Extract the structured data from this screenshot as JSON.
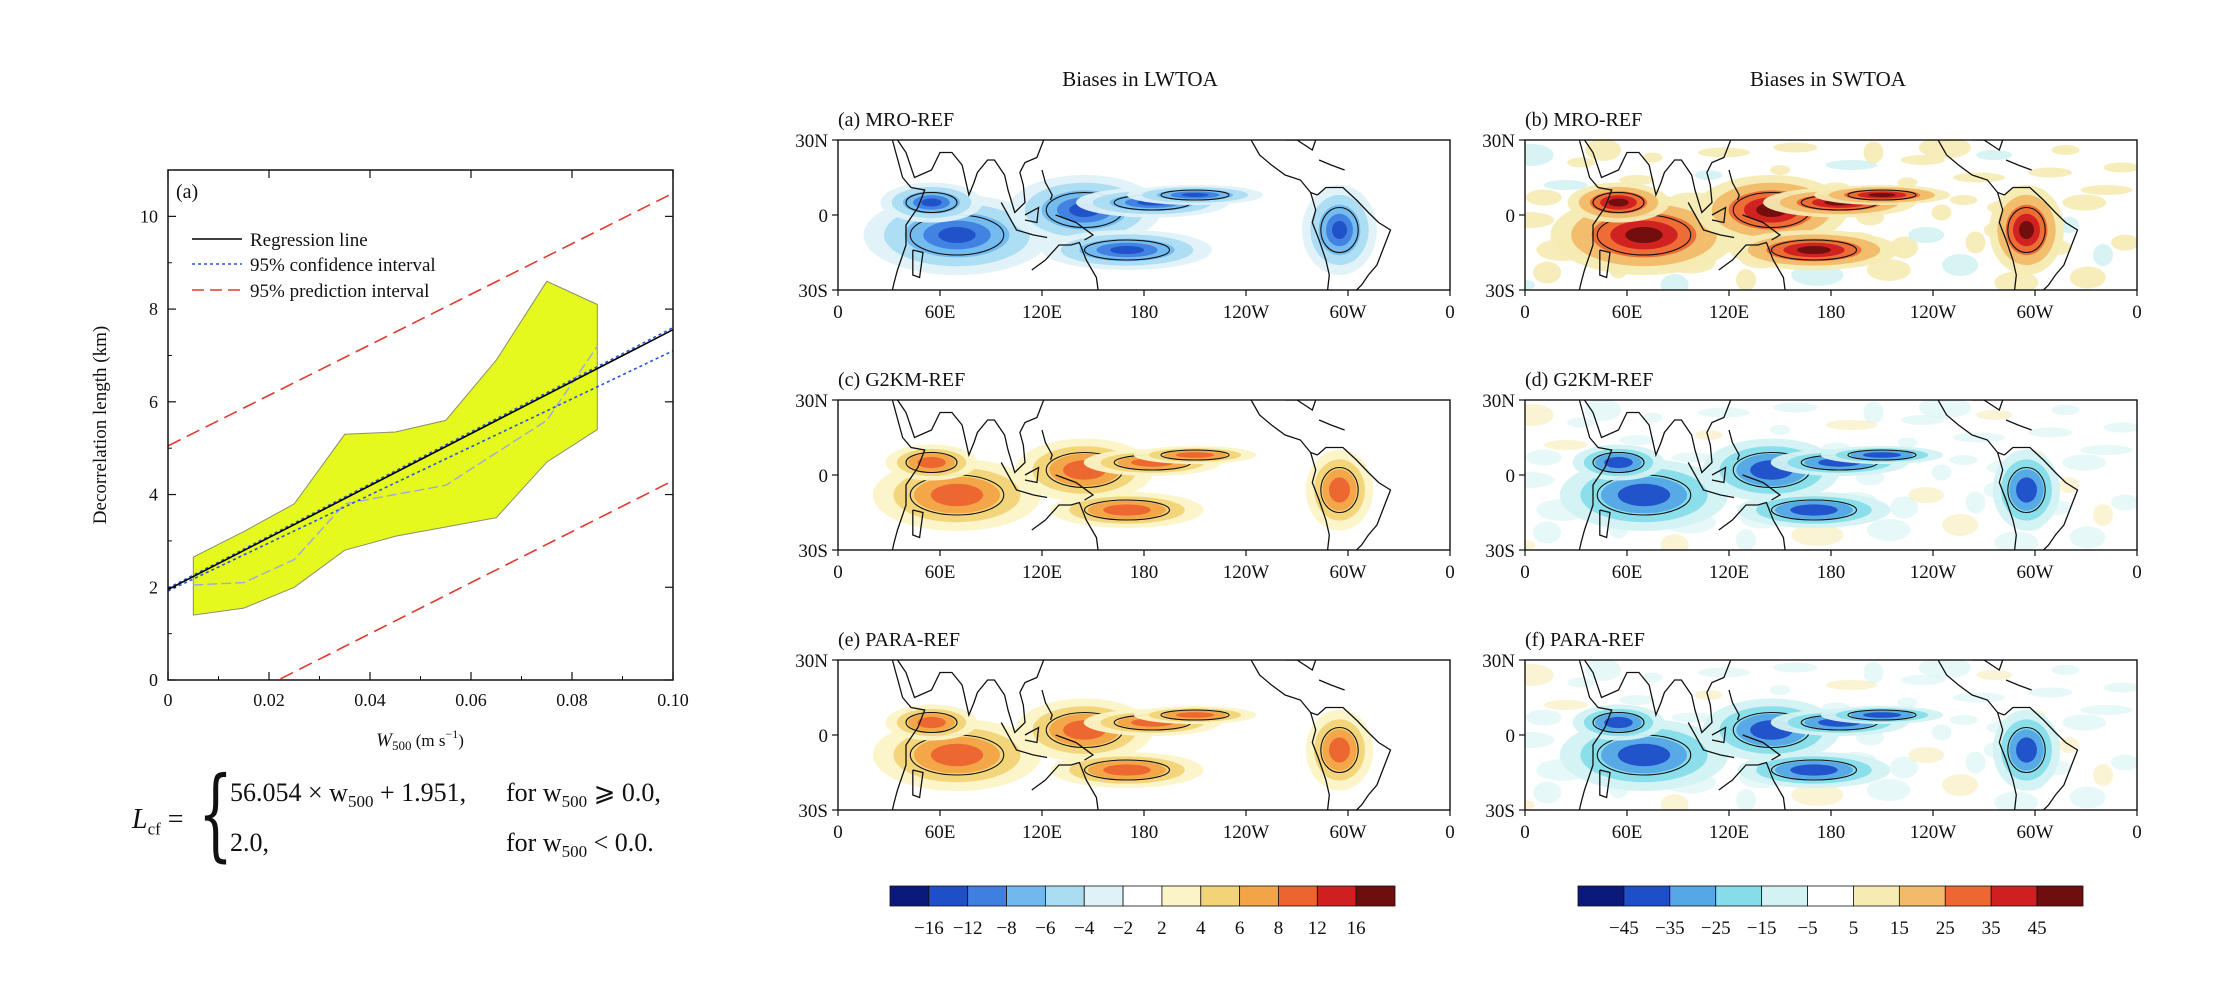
{
  "chart_data": [
    {
      "type": "line",
      "panel_label": "(a)",
      "xlabel_main": "W",
      "xlabel_sub": "500",
      "xlabel_unit_pre": " (m s",
      "xlabel_unit_sup": "−1",
      "xlabel_unit_post": ")",
      "ylabel": "Decorrelation length (km)",
      "xlim": [
        0,
        0.1
      ],
      "ylim": [
        0,
        11
      ],
      "xticks": [
        0,
        0.02,
        0.04,
        0.06,
        0.08,
        0.1
      ],
      "xtick_labels": [
        "0",
        "0.02",
        "0.04",
        "0.06",
        "0.08",
        "0.10"
      ],
      "yticks": [
        0,
        2,
        4,
        6,
        8,
        10
      ],
      "ytick_labels": [
        "0",
        "2",
        "4",
        "6",
        "8",
        "10"
      ],
      "legend": [
        "Regression line",
        "95% confidence interval",
        "95% prediction interval"
      ],
      "regression": {
        "slope": 56.054,
        "intercept": 1.951
      },
      "confidence_band": {
        "x": [
          0,
          0.1
        ],
        "lower": [
          1.92,
          7.1
        ],
        "upper": [
          1.98,
          7.6
        ]
      },
      "prediction_band": {
        "x": [
          0,
          0.1
        ],
        "lower": [
          -1.2,
          4.3
        ],
        "upper": [
          5.05,
          10.5
        ]
      },
      "spread_band": {
        "x": [
          0.005,
          0.015,
          0.025,
          0.035,
          0.045,
          0.055,
          0.065,
          0.075,
          0.085
        ],
        "upper": [
          2.65,
          3.2,
          3.8,
          5.3,
          5.35,
          5.6,
          6.9,
          8.6,
          8.1
        ],
        "lower": [
          1.4,
          1.55,
          2.0,
          2.8,
          3.1,
          3.3,
          3.5,
          4.7,
          5.4
        ]
      },
      "mean_curve": {
        "x": [
          0.005,
          0.015,
          0.025,
          0.035,
          0.045,
          0.055,
          0.065,
          0.075,
          0.085
        ],
        "y": [
          2.05,
          2.1,
          2.6,
          3.8,
          4.0,
          4.2,
          4.9,
          5.6,
          7.2
        ]
      },
      "colors": {
        "band_fill": "#e6f91e",
        "band_edge": "#8a8f6c",
        "regression": "#000000",
        "confidence": "#2a55d6",
        "prediction": "#e23a2e",
        "mean_curve": "#a0a8e0"
      }
    },
    {
      "type": "heatmap",
      "title_left": "Biases in LWTOA",
      "title_right": "Biases in SWTOA",
      "panels": [
        {
          "id": "a",
          "label": "(a) MRO-REF",
          "variable": "LW",
          "sign": -1
        },
        {
          "id": "b",
          "label": "(b) MRO-REF",
          "variable": "SW",
          "sign": 1
        },
        {
          "id": "c",
          "label": "(c) G2KM-REF",
          "variable": "LW",
          "sign": 1
        },
        {
          "id": "d",
          "label": "(d) G2KM-REF",
          "variable": "SW",
          "sign": -1
        },
        {
          "id": "e",
          "label": "(e) PARA-REF",
          "variable": "LW",
          "sign": 1
        },
        {
          "id": "f",
          "label": "(f) PARA-REF",
          "variable": "SW",
          "sign": -1
        }
      ],
      "lat_ticks": [
        "30N",
        "0",
        "30S"
      ],
      "lon_ticks": [
        "0",
        "60E",
        "120E",
        "180",
        "120W",
        "60W",
        "0"
      ],
      "lw_colorbar": {
        "labels": [
          "−16",
          "−12",
          "−8",
          "−6",
          "−4",
          "−2",
          "2",
          "4",
          "6",
          "8",
          "12",
          "16"
        ],
        "colors": [
          "#0b1a7a",
          "#1f4fc8",
          "#3f7fe0",
          "#71b8ef",
          "#aadcf2",
          "#dff2f8",
          "#ffffff",
          "#fbf4c6",
          "#f2d478",
          "#f3a447",
          "#ec6430",
          "#cf1f20",
          "#6e0e0e"
        ]
      },
      "sw_colorbar": {
        "labels": [
          "−45",
          "−35",
          "−25",
          "−15",
          "−5",
          "5",
          "15",
          "25",
          "35",
          "45"
        ],
        "colors": [
          "#0b1a7a",
          "#1f4fc8",
          "#55a7e6",
          "#86dde9",
          "#d3f2f3",
          "#ffffff",
          "#f6ebb2",
          "#f2bb6a",
          "#ec6830",
          "#cf1f20",
          "#6e0e0e"
        ]
      }
    }
  ],
  "formula": {
    "lhs": "L",
    "lhs_sub": "cf",
    "eq": " = ",
    "case1": "56.054 × w",
    "case1_sub": "500",
    "case1_tail": " + 1.951,",
    "cond1_pre": "for  w",
    "cond1_sub": "500",
    "cond1_post": " ⩾ 0.0,",
    "case2": "2.0,",
    "cond2_pre": "for  w",
    "cond2_sub": "500",
    "cond2_post": " < 0.0."
  }
}
